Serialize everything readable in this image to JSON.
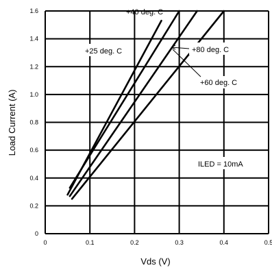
{
  "chart_data": {
    "type": "line",
    "title": "",
    "xlabel": "Vds (V)",
    "ylabel": "Load Current (A)",
    "xlim": [
      0,
      0.5
    ],
    "ylim": [
      0,
      1.6
    ],
    "xticks": [
      "0",
      "0.1",
      "0.2",
      "0.3",
      "0.4",
      "0.5"
    ],
    "yticks": [
      "0",
      "0.2",
      "0.4",
      "0.6",
      "0.8",
      "1.0",
      "1.2",
      "1.4",
      "1.6"
    ],
    "grid": true,
    "series": [
      {
        "name": "+25 deg. C",
        "x": [
          0.055,
          0.3
        ],
        "y": [
          0.33,
          1.6
        ]
      },
      {
        "name": "+40 deg. C",
        "x": [
          0.05,
          0.26
        ],
        "y": [
          0.28,
          1.53
        ]
      },
      {
        "name": "+60 deg. C",
        "x": [
          0.055,
          0.34
        ],
        "y": [
          0.27,
          1.6
        ]
      },
      {
        "name": "+80 deg. C",
        "x": [
          0.06,
          0.4
        ],
        "y": [
          0.25,
          1.6
        ]
      }
    ],
    "labels": {
      "plus25": "+25 deg. C",
      "plus40": "+40 deg. C",
      "plus60": "+60 deg. C",
      "plus80": "+80 deg. C"
    },
    "annotation": "ILED = 10mA"
  }
}
